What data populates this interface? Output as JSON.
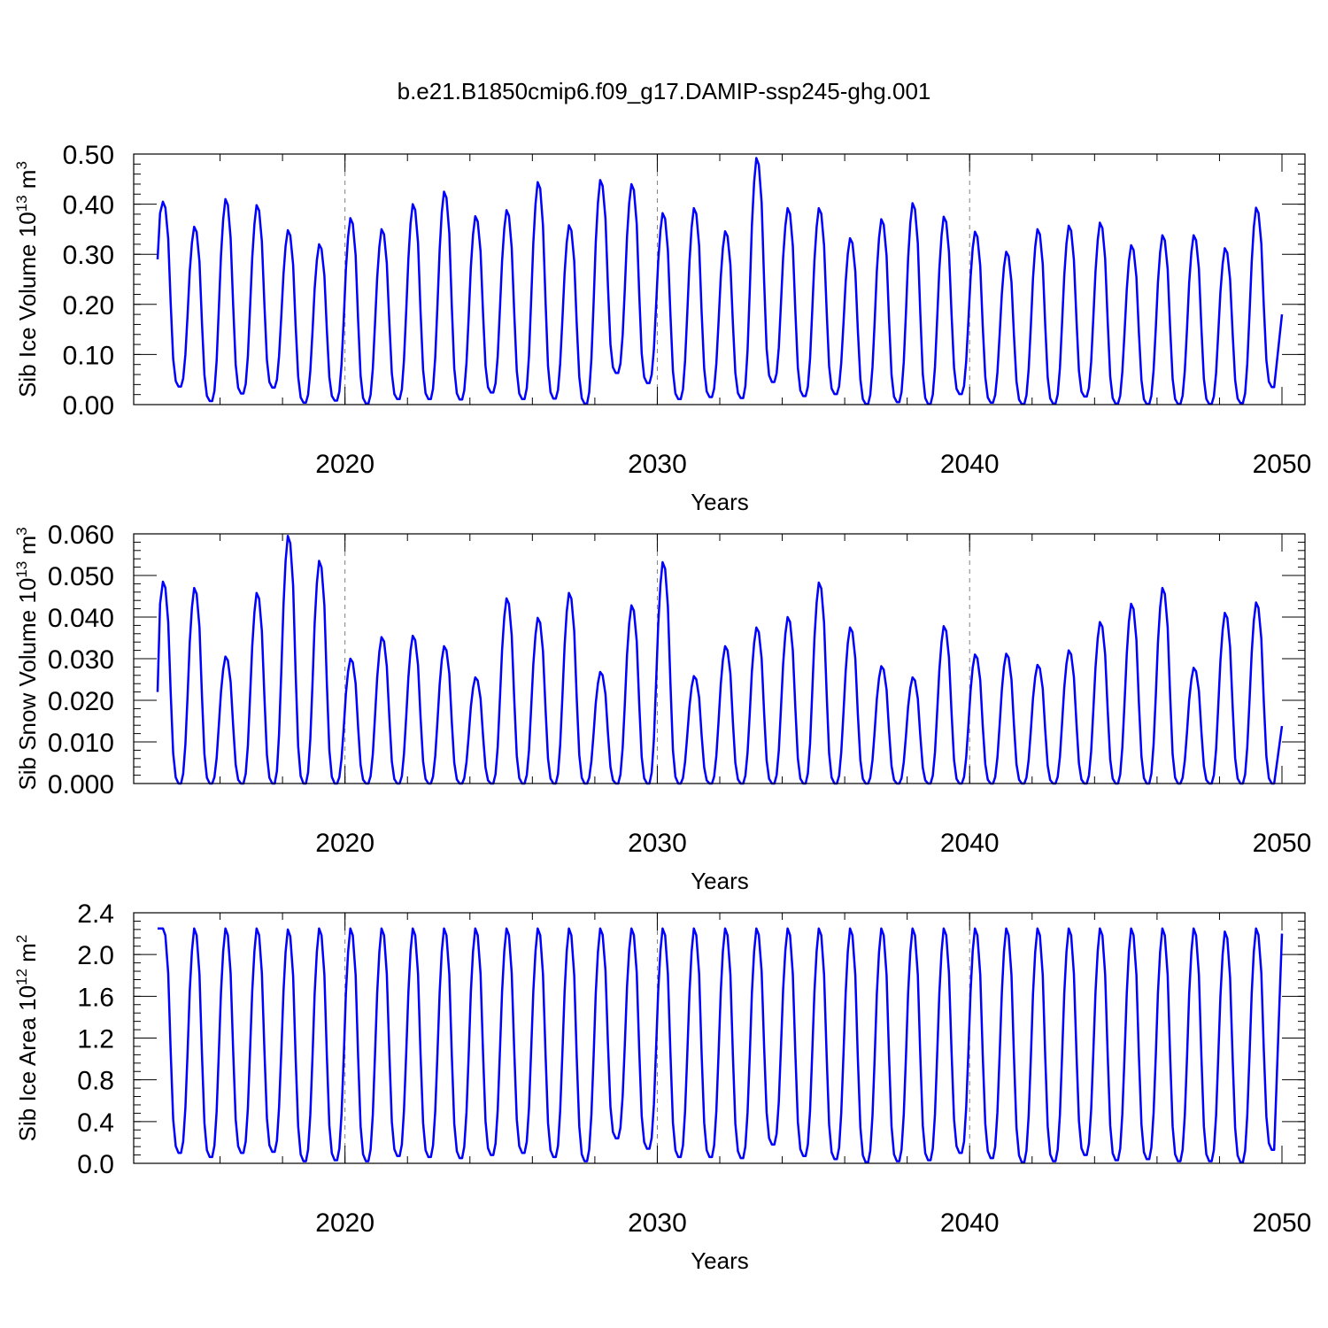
{
  "title": "b.e21.B1850cmip6.f09_g17.DAMIP-ssp245-ghg.001",
  "colors": {
    "line": "#0000ff",
    "axis": "#000000",
    "refline": "#808080"
  },
  "chart_data": [
    {
      "type": "line",
      "name": "ice-volume",
      "ylabel_main": "Sib Ice Volume 10",
      "ylabel_exp": "13",
      "ylabel_unit": " m",
      "ylabel_unit_exp": "3",
      "xlabel": "Years",
      "xlim": [
        2014.0,
        2050.0
      ],
      "ylim": [
        0.0,
        0.5
      ],
      "xticks": [
        2020,
        2030,
        2040,
        2050
      ],
      "xtick_labels": [
        "2020",
        "2030",
        "2040",
        "2050"
      ],
      "yticks": [
        0.0,
        0.1,
        0.2,
        0.3,
        0.4,
        0.5
      ],
      "ytick_labels": [
        "0.00",
        "0.10",
        "0.20",
        "0.30",
        "0.40",
        "0.50"
      ],
      "reference_lines_x": [
        2020,
        2030,
        2040
      ],
      "series": [
        {
          "name": "Sib Ice Volume",
          "peaks": [
            0.405,
            0.355,
            0.41,
            0.398,
            0.348,
            0.32,
            0.372,
            0.35,
            0.4,
            0.425,
            0.376,
            0.388,
            0.444,
            0.358,
            0.448,
            0.44,
            0.382,
            0.392,
            0.346,
            0.492,
            0.392,
            0.392,
            0.332,
            0.37,
            0.402,
            0.375,
            0.345,
            0.305,
            0.35,
            0.357,
            0.363,
            0.318,
            0.338,
            0.338,
            0.312,
            0.393
          ],
          "troughs": [
            0.036,
            0.007,
            0.022,
            0.034,
            0.004,
            0.008,
            0.002,
            0.011,
            0.011,
            0.01,
            0.024,
            0.011,
            0.012,
            0.002,
            0.063,
            0.043,
            0.011,
            0.015,
            0.013,
            0.045,
            0.017,
            0.021,
            0.001,
            0.005,
            0.001,
            0.021,
            0.004,
            0.001,
            0.002,
            0.016,
            0.002,
            0.001,
            0.001,
            0.001,
            0.003,
            0.035
          ],
          "start": 0.29,
          "end": 0.18
        }
      ]
    },
    {
      "type": "line",
      "name": "snow-volume",
      "ylabel_main": "Sib Snow Volume 10",
      "ylabel_exp": "13",
      "ylabel_unit": " m",
      "ylabel_unit_exp": "3",
      "xlabel": "Years",
      "xlim": [
        2014.0,
        2050.0
      ],
      "ylim": [
        0.0,
        0.06
      ],
      "xticks": [
        2020,
        2030,
        2040,
        2050
      ],
      "xtick_labels": [
        "2020",
        "2030",
        "2040",
        "2050"
      ],
      "yticks": [
        0.0,
        0.01,
        0.02,
        0.03,
        0.04,
        0.05,
        0.06
      ],
      "ytick_labels": [
        "0.000",
        "0.010",
        "0.020",
        "0.030",
        "0.040",
        "0.050",
        "0.060"
      ],
      "reference_lines_x": [
        2020,
        2030,
        2040
      ],
      "series": [
        {
          "name": "Sib Snow Volume",
          "peaks": [
            0.0485,
            0.047,
            0.0305,
            0.0458,
            0.0595,
            0.0535,
            0.03,
            0.0352,
            0.0355,
            0.033,
            0.0255,
            0.0445,
            0.0398,
            0.0458,
            0.0268,
            0.0428,
            0.0532,
            0.0258,
            0.033,
            0.0375,
            0.04,
            0.0483,
            0.0375,
            0.0282,
            0.0255,
            0.0378,
            0.031,
            0.0312,
            0.0285,
            0.032,
            0.0388,
            0.0432,
            0.047,
            0.0278,
            0.041,
            0.0435
          ],
          "troughs": [
            0.0,
            0.0,
            0.0,
            0.0,
            0.0,
            0.0,
            0.0,
            0.0,
            0.0,
            0.0,
            0.0,
            0.0,
            0.0,
            0.0,
            0.0,
            0.0,
            0.0,
            0.0,
            0.0,
            0.0,
            0.0,
            0.0,
            0.0,
            0.0,
            0.0,
            0.0,
            0.0,
            0.0,
            0.0,
            0.0,
            0.0,
            0.0,
            0.0,
            0.0,
            0.0,
            0.0
          ],
          "start": 0.022,
          "end": 0.0138
        }
      ]
    },
    {
      "type": "line",
      "name": "ice-area",
      "ylabel_main": "Sib Ice Area 10",
      "ylabel_exp": "12",
      "ylabel_unit": " m",
      "ylabel_unit_exp": "2",
      "xlabel": "Years",
      "xlim": [
        2014.0,
        2050.0
      ],
      "ylim": [
        0.0,
        2.4
      ],
      "xticks": [
        2020,
        2030,
        2040,
        2050
      ],
      "xtick_labels": [
        "2020",
        "2030",
        "2040",
        "2050"
      ],
      "yticks": [
        0.0,
        0.4,
        0.8,
        1.2,
        1.6,
        2.0,
        2.4
      ],
      "ytick_labels": [
        "0.0",
        "0.4",
        "0.8",
        "1.2",
        "1.6",
        "2.0",
        "2.4"
      ],
      "reference_lines_x": [
        2020,
        2030,
        2040
      ],
      "series": [
        {
          "name": "Sib Ice Area",
          "peaks": [
            2.25,
            2.25,
            2.25,
            2.25,
            2.24,
            2.25,
            2.25,
            2.25,
            2.25,
            2.25,
            2.25,
            2.25,
            2.25,
            2.25,
            2.25,
            2.25,
            2.25,
            2.25,
            2.25,
            2.25,
            2.25,
            2.25,
            2.25,
            2.25,
            2.25,
            2.25,
            2.25,
            2.25,
            2.25,
            2.25,
            2.25,
            2.25,
            2.25,
            2.25,
            2.22,
            2.25
          ],
          "troughs": [
            0.1,
            0.06,
            0.1,
            0.11,
            0.02,
            0.03,
            0.02,
            0.07,
            0.06,
            0.05,
            0.08,
            0.1,
            0.06,
            0.02,
            0.24,
            0.14,
            0.06,
            0.06,
            0.05,
            0.18,
            0.07,
            0.04,
            0.01,
            0.02,
            0.03,
            0.1,
            0.05,
            0.01,
            0.02,
            0.08,
            0.03,
            0.04,
            0.02,
            0.02,
            0.01,
            0.13
          ],
          "start": 2.25,
          "end": 2.2
        }
      ]
    }
  ]
}
